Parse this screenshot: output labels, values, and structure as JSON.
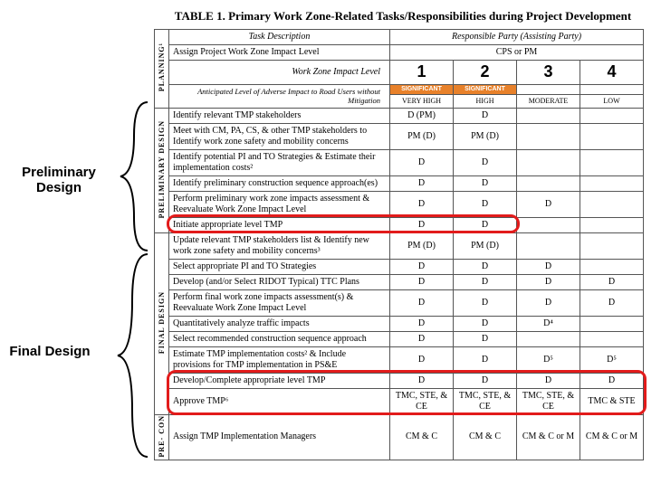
{
  "title": "TABLE 1.  Primary Work Zone-Related Tasks/Responsibilities during Project Development",
  "headers": {
    "task_desc": "Task Description",
    "resp_party": "Responsible Party (Assisting Party)",
    "wz_impact": "Work Zone Impact Level",
    "anticipated": "Anticipated Level of Adverse Impact to Road Users without Mitigation"
  },
  "levels": {
    "1": "1",
    "2": "2",
    "3": "3",
    "4": "4"
  },
  "sig": "SIGNIFICANT",
  "sig_bg": "#e8812a",
  "severity": {
    "1": "VERY HIGH",
    "2": "HIGH",
    "3": "MODERATE",
    "4": "LOW"
  },
  "phases": {
    "planning": "PLANNING¹",
    "prelim": "PRELIMINARY DESIGN",
    "final": "FINAL DESIGN",
    "precon": "PRE- CON"
  },
  "rows": {
    "p0": {
      "desc": "Assign Project Work Zone Impact Level",
      "span": "CPS  or  PM"
    },
    "r1": {
      "desc": "Identify relevant TMP stakeholders",
      "c1": "D (PM)",
      "c2": "D",
      "c3": "",
      "c4": ""
    },
    "r2": {
      "desc": "Meet with CM, PA, CS, & other TMP stakeholders to Identify work zone safety and mobility concerns",
      "c1": "PM (D)",
      "c2": "PM (D)",
      "c3": "",
      "c4": ""
    },
    "r3": {
      "desc": "Identify potential PI and TO Strategies & Estimate their implementation costs²",
      "c1": "D",
      "c2": "D",
      "c3": "",
      "c4": ""
    },
    "r4": {
      "desc": "Identify preliminary construction sequence approach(es)",
      "c1": "D",
      "c2": "D",
      "c3": "",
      "c4": ""
    },
    "r5": {
      "desc": "Perform preliminary work zone impacts assessment & Reevaluate Work Zone Impact Level",
      "c1": "D",
      "c2": "D",
      "c3": "D",
      "c4": ""
    },
    "r6": {
      "desc": "Initiate appropriate level TMP",
      "c1": "D",
      "c2": "D",
      "c3": "",
      "c4": ""
    },
    "f1": {
      "desc": "Update relevant TMP stakeholders list & Identify new work zone safety and mobility concerns³",
      "c1": "PM (D)",
      "c2": "PM (D)",
      "c3": "",
      "c4": ""
    },
    "f2": {
      "desc": "Select appropriate PI and TO Strategies",
      "c1": "D",
      "c2": "D",
      "c3": "D",
      "c4": ""
    },
    "f3": {
      "desc": "Develop (and/or Select RIDOT Typical) TTC Plans",
      "c1": "D",
      "c2": "D",
      "c3": "D",
      "c4": "D"
    },
    "f4": {
      "desc": "Perform final work zone impacts assessment(s) & Reevaluate Work Zone Impact Level",
      "c1": "D",
      "c2": "D",
      "c3": "D",
      "c4": "D"
    },
    "f5": {
      "desc": "Quantitatively analyze traffic impacts",
      "c1": "D",
      "c2": "D",
      "c3": "D⁴",
      "c4": ""
    },
    "f6": {
      "desc": "Select recommended construction sequence approach",
      "c1": "D",
      "c2": "D",
      "c3": "",
      "c4": ""
    },
    "f7": {
      "desc": "Estimate TMP implementation costs² & Include provisions for TMP implementation in PS&E",
      "c1": "D",
      "c2": "D",
      "c3": "D⁵",
      "c4": "D⁵"
    },
    "f8": {
      "desc": "Develop/Complete appropriate level TMP",
      "c1": "D",
      "c2": "D",
      "c3": "D",
      "c4": "D"
    },
    "f9": {
      "desc": "Approve TMP⁶",
      "c1": "TMC, STE, & CE",
      "c2": "TMC, STE, & CE",
      "c3": "TMC, STE, & CE",
      "c4": "TMC & STE"
    },
    "pc1": {
      "desc": "Assign TMP Implementation Managers",
      "c1": "CM & C",
      "c2": "CM & C",
      "c3": "CM & C or M",
      "c4": "CM & C or M"
    }
  },
  "annotations": {
    "prelim": "Preliminary Design",
    "final": "Final Design"
  },
  "colors": {
    "redbox": "#e21b1b",
    "border": "#555555",
    "text": "#000000",
    "bg": "#ffffff"
  }
}
